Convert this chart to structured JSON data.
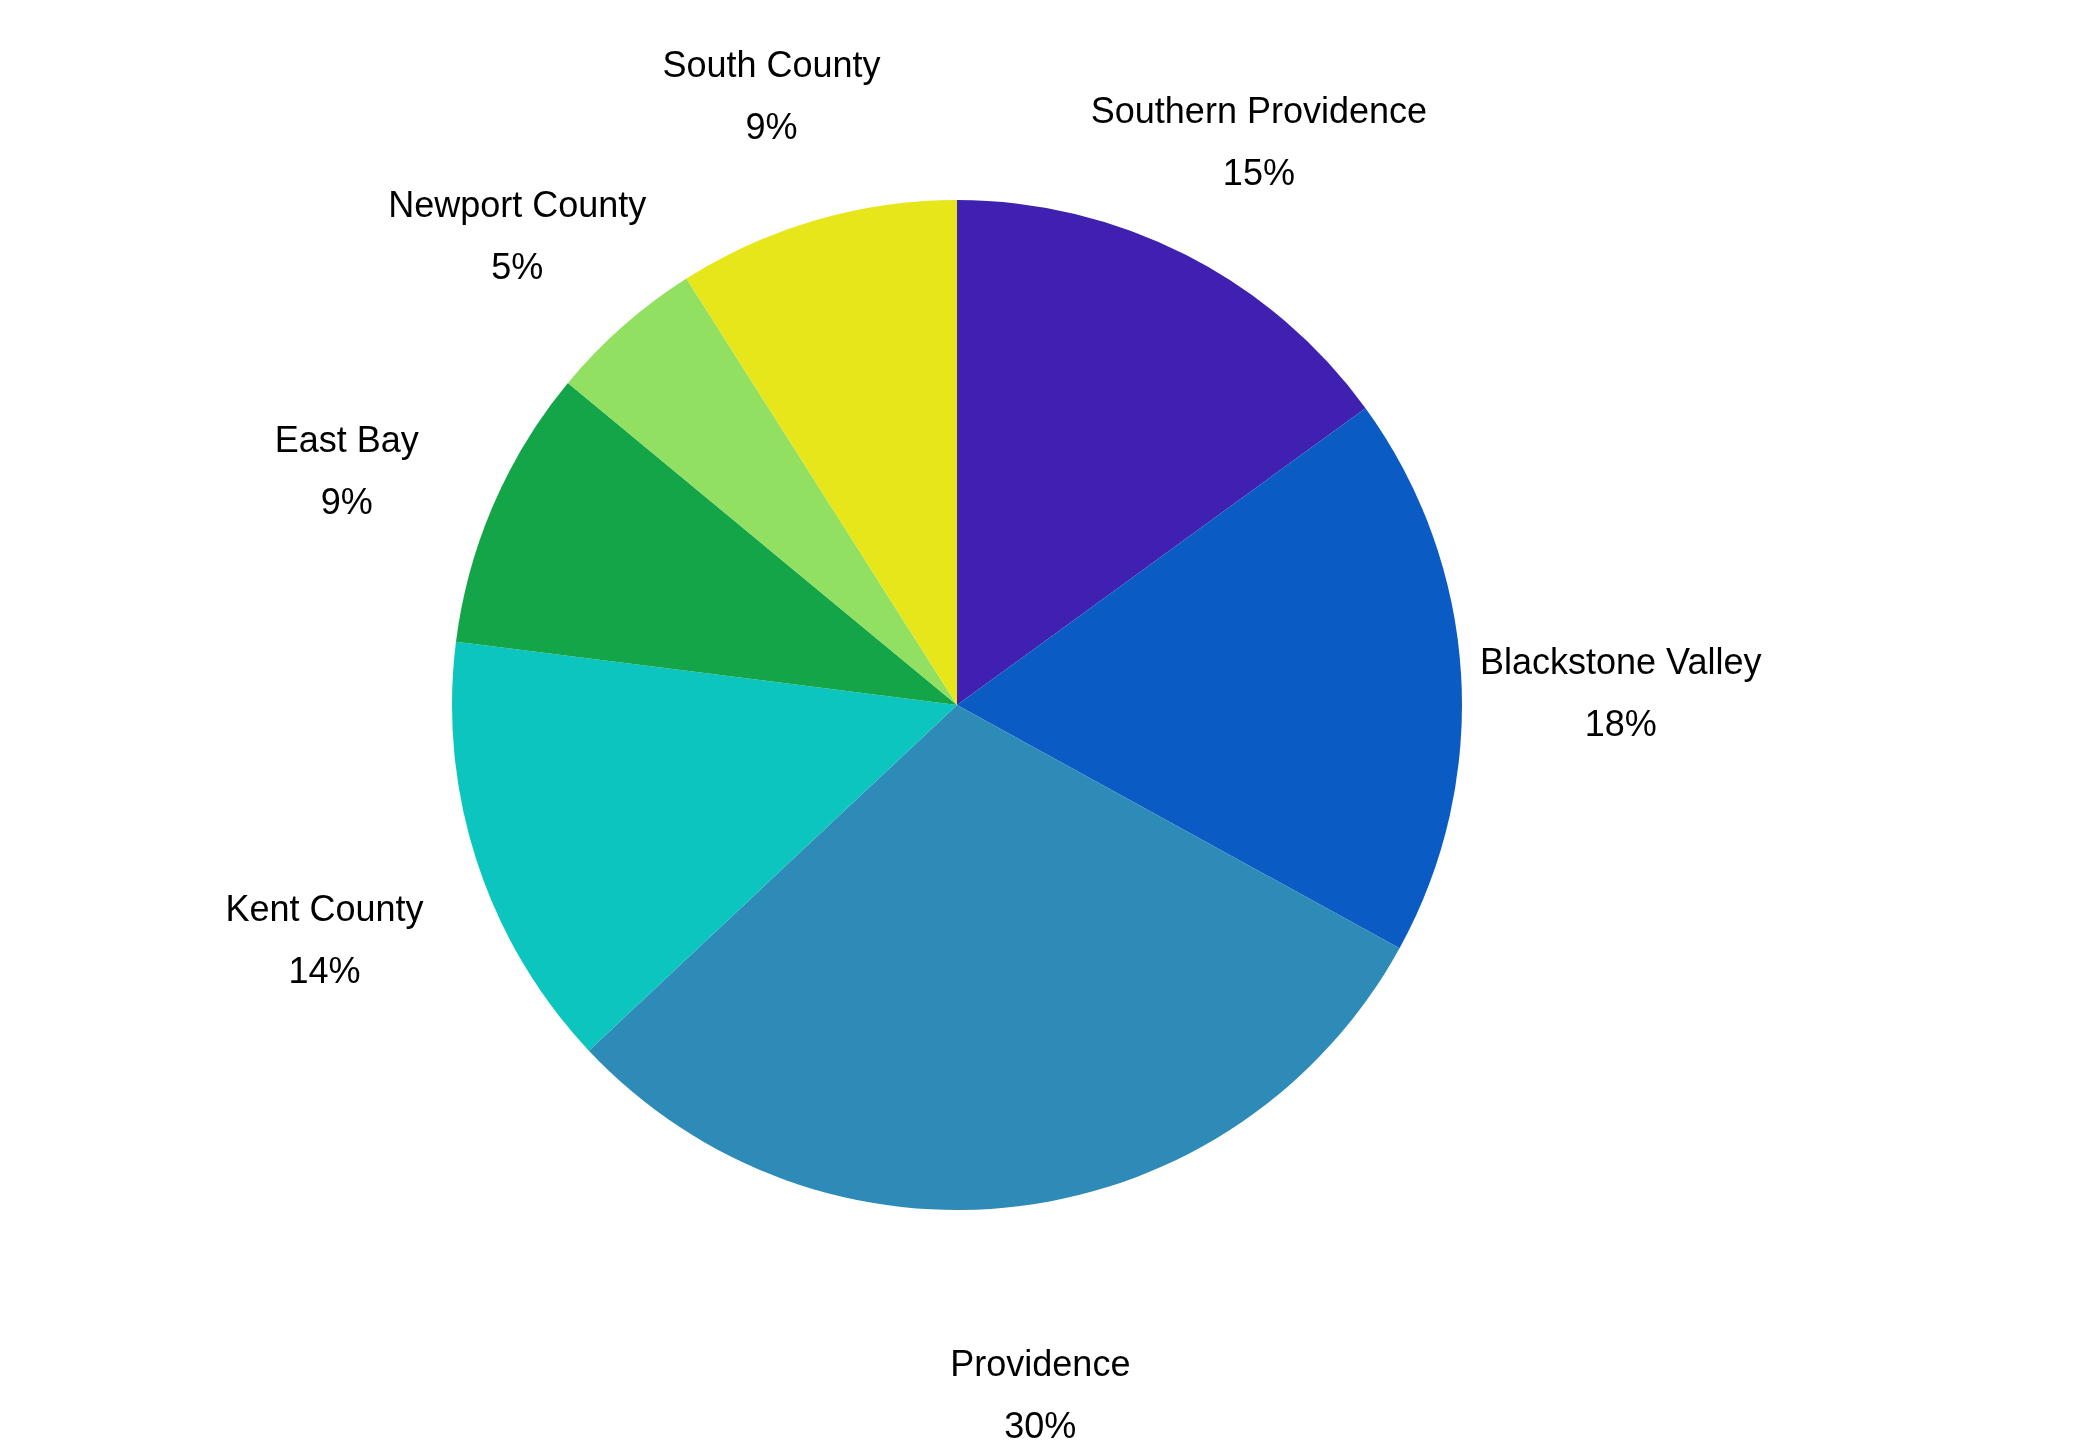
{
  "chart_data": {
    "type": "pie",
    "categories": [
      "Southern Providence",
      "Blackstone Valley",
      "Providence",
      "Kent County",
      "East Bay",
      "Newport County",
      "South County"
    ],
    "values": [
      15,
      18,
      30,
      14,
      9,
      5,
      9
    ],
    "value_labels": [
      "15%",
      "18%",
      "30%",
      "14%",
      "9%",
      "5%",
      "9%"
    ],
    "colors": [
      "#3f20b0",
      "#0a5cc4",
      "#2e8bb8",
      "#0cc5be",
      "#13a547",
      "#92e062",
      "#e6e61a"
    ],
    "legend": false
  }
}
